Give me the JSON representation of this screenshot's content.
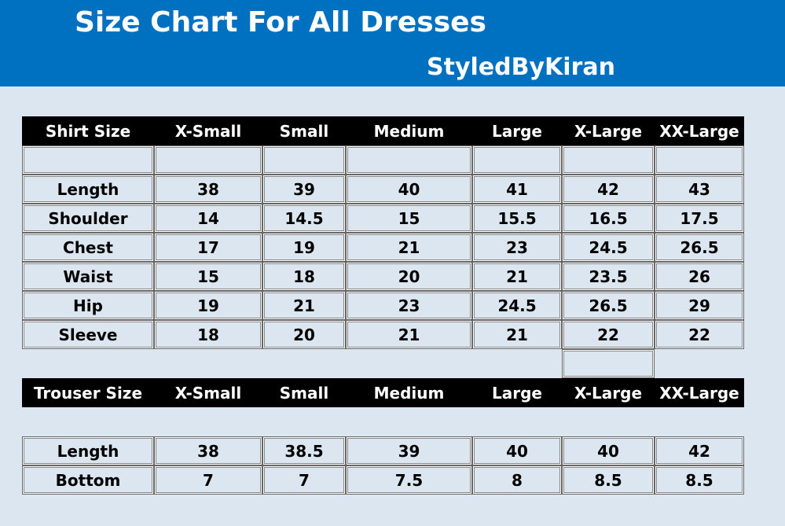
{
  "header": {
    "title": "Size Chart For All Dresses",
    "brand": "StyledByKiran"
  },
  "shirt_table": {
    "columns": [
      "Shirt Size",
      "X-Small",
      "Small",
      "Medium",
      "Large",
      "X-Large",
      "XX-Large"
    ],
    "rows": [
      [
        "Length",
        38,
        39,
        40,
        41,
        42,
        43
      ],
      [
        "Shoulder",
        14,
        14.5,
        15,
        15.5,
        16.5,
        17.5
      ],
      [
        "Chest",
        17,
        19,
        21,
        23,
        24.5,
        26.5
      ],
      [
        "Waist",
        15,
        18,
        20,
        21,
        23.5,
        26
      ],
      [
        "Hip",
        19,
        21,
        23,
        24.5,
        26.5,
        29
      ],
      [
        "Sleeve",
        18,
        20,
        21,
        21,
        22,
        22
      ]
    ]
  },
  "trouser_table": {
    "columns": [
      "Trouser Size",
      "X-Small",
      "Small",
      "Medium",
      "Large",
      "X-Large",
      "XX-Large"
    ],
    "rows": [
      [
        "Length",
        38,
        38.5,
        39,
        40,
        40,
        42
      ],
      [
        "Bottom",
        7,
        7,
        7.5,
        8,
        8.5,
        8.5
      ]
    ]
  }
}
